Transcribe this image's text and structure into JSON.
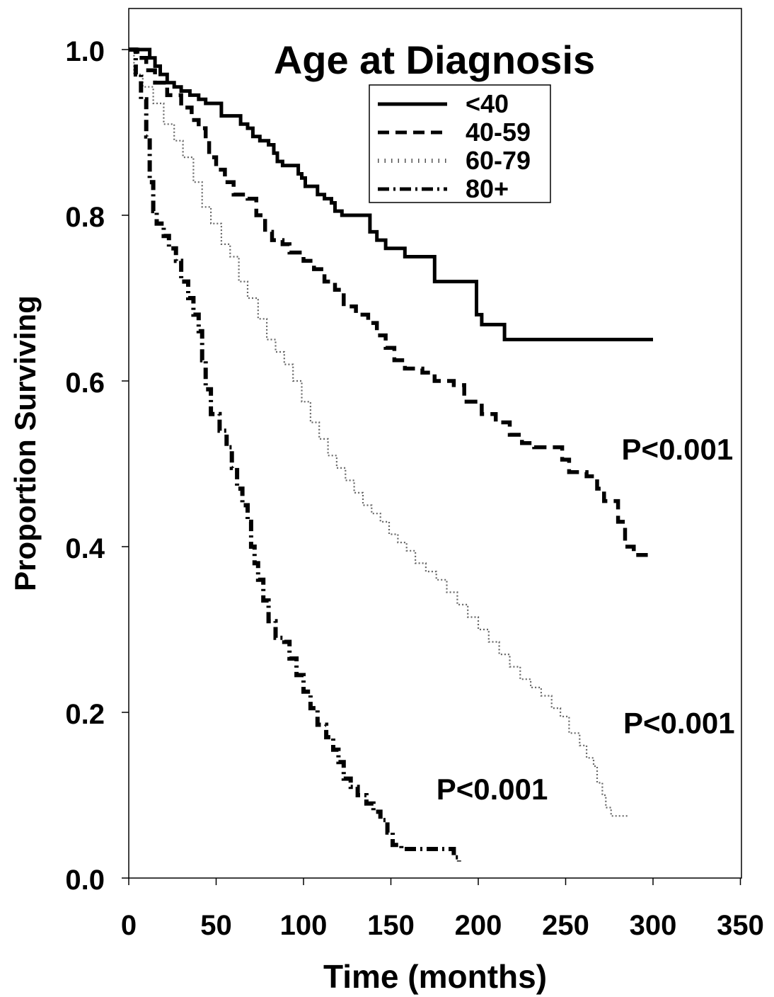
{
  "chart_data": {
    "type": "line",
    "step": true,
    "title": "Age at Diagnosis",
    "xlabel": "Time (months)",
    "ylabel": "Proportion Surviving",
    "xlim": [
      0,
      350
    ],
    "ylim": [
      0.0,
      1.05
    ],
    "xticks": [
      0,
      50,
      100,
      150,
      200,
      250,
      300,
      350
    ],
    "yticks": [
      0.0,
      0.2,
      0.4,
      0.6,
      0.8,
      1.0
    ],
    "ytick_labels": [
      "0.0",
      "0.2",
      "0.4",
      "0.6",
      "0.8",
      "1.0"
    ],
    "grid": false,
    "legend_position": "top-center",
    "series": [
      {
        "name": "<40",
        "style": "solid",
        "points": [
          [
            0,
            1.0
          ],
          [
            10,
            1.0
          ],
          [
            12,
            0.99
          ],
          [
            15,
            0.98
          ],
          [
            18,
            0.97
          ],
          [
            22,
            0.96
          ],
          [
            26,
            0.955
          ],
          [
            30,
            0.95
          ],
          [
            35,
            0.945
          ],
          [
            40,
            0.94
          ],
          [
            44,
            0.935
          ],
          [
            50,
            0.935
          ],
          [
            53,
            0.92
          ],
          [
            62,
            0.92
          ],
          [
            64,
            0.91
          ],
          [
            68,
            0.905
          ],
          [
            71,
            0.895
          ],
          [
            75,
            0.89
          ],
          [
            80,
            0.885
          ],
          [
            83,
            0.875
          ],
          [
            85,
            0.865
          ],
          [
            88,
            0.86
          ],
          [
            95,
            0.86
          ],
          [
            97,
            0.85
          ],
          [
            99,
            0.845
          ],
          [
            101,
            0.835
          ],
          [
            106,
            0.835
          ],
          [
            108,
            0.825
          ],
          [
            112,
            0.82
          ],
          [
            116,
            0.815
          ],
          [
            118,
            0.805
          ],
          [
            122,
            0.8
          ],
          [
            137,
            0.8
          ],
          [
            138,
            0.78
          ],
          [
            142,
            0.77
          ],
          [
            147,
            0.76
          ],
          [
            157,
            0.76
          ],
          [
            158,
            0.75
          ],
          [
            174,
            0.75
          ],
          [
            175,
            0.72
          ],
          [
            198,
            0.72
          ],
          [
            199,
            0.68
          ],
          [
            202,
            0.668
          ],
          [
            214,
            0.668
          ],
          [
            215,
            0.65
          ],
          [
            300,
            0.65
          ]
        ]
      },
      {
        "name": "40-59",
        "style": "dashed",
        "points": [
          [
            0,
            1.0
          ],
          [
            5,
            0.99
          ],
          [
            10,
            0.975
          ],
          [
            15,
            0.96
          ],
          [
            22,
            0.945
          ],
          [
            30,
            0.93
          ],
          [
            36,
            0.915
          ],
          [
            40,
            0.905
          ],
          [
            44,
            0.89
          ],
          [
            46,
            0.87
          ],
          [
            50,
            0.855
          ],
          [
            55,
            0.84
          ],
          [
            60,
            0.825
          ],
          [
            68,
            0.82
          ],
          [
            73,
            0.8
          ],
          [
            78,
            0.78
          ],
          [
            82,
            0.77
          ],
          [
            88,
            0.765
          ],
          [
            92,
            0.755
          ],
          [
            100,
            0.745
          ],
          [
            106,
            0.735
          ],
          [
            112,
            0.72
          ],
          [
            118,
            0.71
          ],
          [
            123,
            0.69
          ],
          [
            130,
            0.68
          ],
          [
            137,
            0.67
          ],
          [
            142,
            0.655
          ],
          [
            147,
            0.64
          ],
          [
            152,
            0.625
          ],
          [
            158,
            0.615
          ],
          [
            168,
            0.61
          ],
          [
            175,
            0.6
          ],
          [
            186,
            0.595
          ],
          [
            192,
            0.575
          ],
          [
            202,
            0.56
          ],
          [
            210,
            0.55
          ],
          [
            218,
            0.535
          ],
          [
            225,
            0.525
          ],
          [
            232,
            0.52
          ],
          [
            243,
            0.52
          ],
          [
            248,
            0.505
          ],
          [
            252,
            0.49
          ],
          [
            262,
            0.485
          ],
          [
            268,
            0.47
          ],
          [
            272,
            0.455
          ],
          [
            280,
            0.43
          ],
          [
            284,
            0.4
          ],
          [
            289,
            0.39
          ],
          [
            297,
            0.39
          ]
        ]
      },
      {
        "name": "60-79",
        "style": "dotted",
        "points": [
          [
            0,
            1.0
          ],
          [
            3,
            0.97
          ],
          [
            8,
            0.955
          ],
          [
            14,
            0.935
          ],
          [
            20,
            0.91
          ],
          [
            26,
            0.89
          ],
          [
            31,
            0.87
          ],
          [
            37,
            0.84
          ],
          [
            42,
            0.81
          ],
          [
            47,
            0.79
          ],
          [
            53,
            0.765
          ],
          [
            58,
            0.75
          ],
          [
            63,
            0.72
          ],
          [
            68,
            0.7
          ],
          [
            74,
            0.675
          ],
          [
            79,
            0.65
          ],
          [
            84,
            0.635
          ],
          [
            89,
            0.62
          ],
          [
            94,
            0.6
          ],
          [
            99,
            0.575
          ],
          [
            104,
            0.55
          ],
          [
            109,
            0.53
          ],
          [
            114,
            0.51
          ],
          [
            119,
            0.495
          ],
          [
            124,
            0.48
          ],
          [
            129,
            0.465
          ],
          [
            134,
            0.45
          ],
          [
            139,
            0.44
          ],
          [
            144,
            0.43
          ],
          [
            149,
            0.415
          ],
          [
            154,
            0.405
          ],
          [
            159,
            0.395
          ],
          [
            164,
            0.38
          ],
          [
            170,
            0.37
          ],
          [
            176,
            0.36
          ],
          [
            182,
            0.345
          ],
          [
            188,
            0.33
          ],
          [
            194,
            0.315
          ],
          [
            200,
            0.3
          ],
          [
            206,
            0.285
          ],
          [
            212,
            0.27
          ],
          [
            218,
            0.255
          ],
          [
            224,
            0.24
          ],
          [
            230,
            0.23
          ],
          [
            236,
            0.22
          ],
          [
            242,
            0.205
          ],
          [
            247,
            0.195
          ],
          [
            252,
            0.175
          ],
          [
            258,
            0.16
          ],
          [
            262,
            0.145
          ],
          [
            266,
            0.135
          ],
          [
            268,
            0.115
          ],
          [
            271,
            0.1
          ],
          [
            273,
            0.085
          ],
          [
            276,
            0.075
          ],
          [
            286,
            0.075
          ]
        ]
      },
      {
        "name": "80+",
        "style": "dashdot",
        "points": [
          [
            0,
            1.0
          ],
          [
            4,
            0.97
          ],
          [
            7,
            0.94
          ],
          [
            10,
            0.895
          ],
          [
            12,
            0.84
          ],
          [
            14,
            0.805
          ],
          [
            16,
            0.79
          ],
          [
            20,
            0.775
          ],
          [
            23,
            0.76
          ],
          [
            27,
            0.745
          ],
          [
            30,
            0.72
          ],
          [
            34,
            0.7
          ],
          [
            37,
            0.68
          ],
          [
            40,
            0.66
          ],
          [
            42,
            0.625
          ],
          [
            44,
            0.59
          ],
          [
            47,
            0.56
          ],
          [
            52,
            0.54
          ],
          [
            56,
            0.52
          ],
          [
            59,
            0.495
          ],
          [
            62,
            0.47
          ],
          [
            65,
            0.45
          ],
          [
            68,
            0.43
          ],
          [
            70,
            0.4
          ],
          [
            72,
            0.38
          ],
          [
            74,
            0.36
          ],
          [
            77,
            0.335
          ],
          [
            80,
            0.31
          ],
          [
            84,
            0.29
          ],
          [
            89,
            0.285
          ],
          [
            92,
            0.265
          ],
          [
            96,
            0.245
          ],
          [
            100,
            0.225
          ],
          [
            104,
            0.205
          ],
          [
            108,
            0.185
          ],
          [
            113,
            0.17
          ],
          [
            117,
            0.155
          ],
          [
            120,
            0.14
          ],
          [
            123,
            0.12
          ],
          [
            127,
            0.11
          ],
          [
            131,
            0.1
          ],
          [
            136,
            0.09
          ],
          [
            140,
            0.08
          ],
          [
            144,
            0.07
          ],
          [
            148,
            0.055
          ],
          [
            151,
            0.04
          ],
          [
            156,
            0.035
          ],
          [
            165,
            0.035
          ],
          [
            172,
            0.035
          ],
          [
            180,
            0.035
          ],
          [
            186,
            0.025
          ],
          [
            189,
            0.02
          ]
        ]
      }
    ],
    "annotations": [
      {
        "text": "P<0.001",
        "x": 282,
        "y": 0.505
      },
      {
        "text": "P<0.001",
        "x": 283,
        "y": 0.175
      },
      {
        "text": "P<0.001",
        "x": 176,
        "y": 0.095
      }
    ]
  }
}
